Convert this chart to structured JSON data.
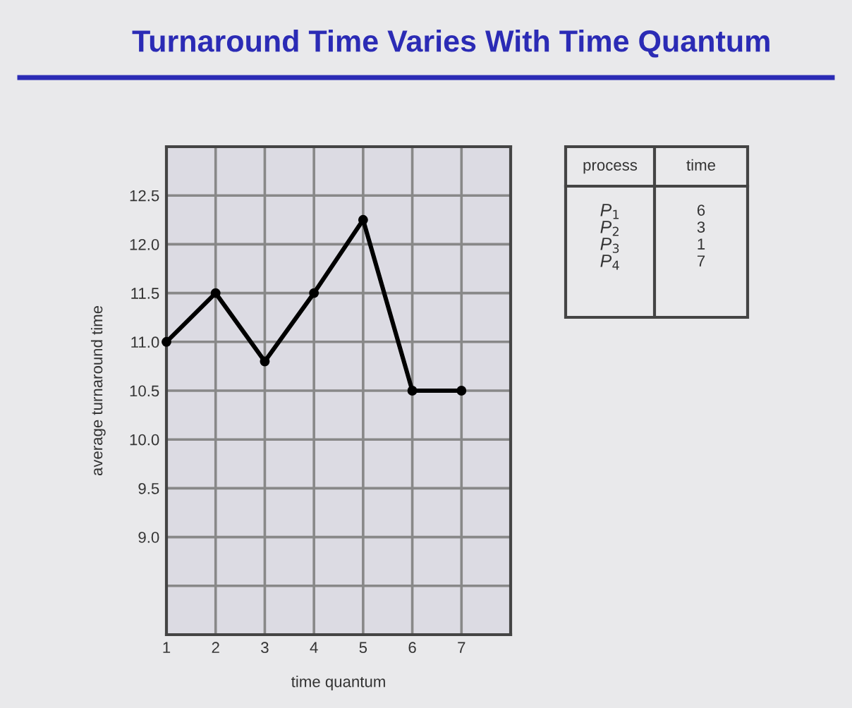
{
  "chart_data": {
    "type": "line",
    "title": "Turnaround Time Varies With Time Quantum",
    "xlabel": "time quantum",
    "ylabel": "average turnaround time",
    "x": [
      1,
      2,
      3,
      4,
      5,
      6,
      7
    ],
    "series": [
      {
        "color": "#000000",
        "values": [
          11.0,
          11.5,
          10.8,
          11.5,
          12.25,
          10.5,
          10.5
        ]
      }
    ],
    "xlim": [
      1,
      8
    ],
    "xticks": [
      1,
      2,
      3,
      4,
      5,
      6,
      7,
      {
        "value": 8,
        "label": null
      }
    ],
    "ylim": [
      8,
      13
    ],
    "yticks": [
      {
        "value": 8.5,
        "label": null
      },
      {
        "value": 9.0,
        "label": "9.0"
      },
      9.5,
      {
        "value": 10.0,
        "label": "10.0"
      },
      10.5,
      {
        "value": 11.0,
        "label": "11.0"
      },
      11.5,
      {
        "value": 12.0,
        "label": "12.0"
      },
      12.5,
      {
        "value": 13.0,
        "label": null
      }
    ],
    "grid": true,
    "marker": "circle",
    "line_style": "solid",
    "annotations": [
      "process",
      "time",
      "P$_{1}$",
      "6",
      "P$_{2}$",
      "3",
      "P$_{3}$",
      "1",
      "P$_{4}$",
      "7"
    ]
  }
}
